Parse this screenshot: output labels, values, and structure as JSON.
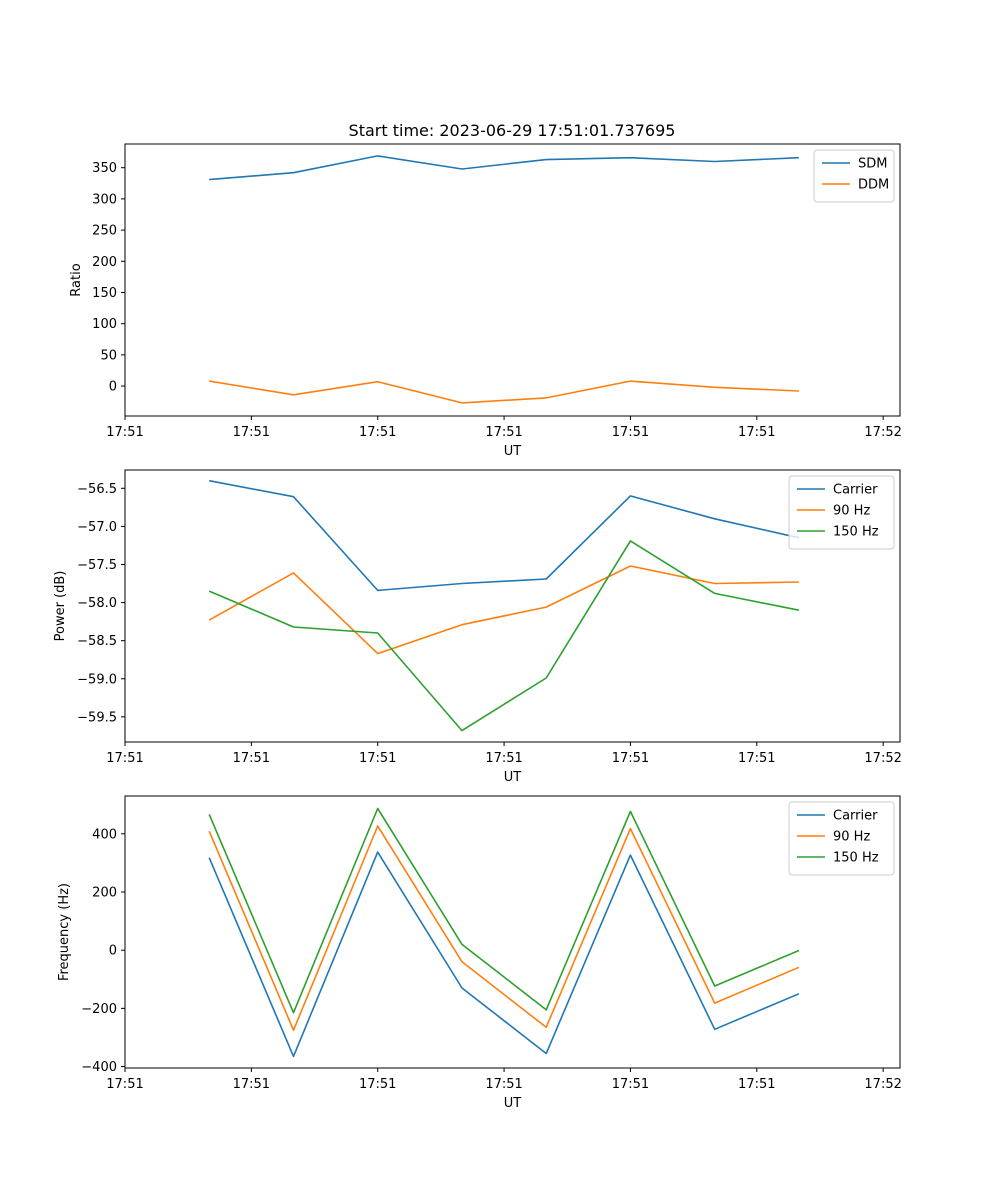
{
  "figure_title": "Start time: 2023-06-29 17:51:01.737695",
  "colors": {
    "blue": "#1f77b4",
    "orange": "#ff7f0e",
    "green": "#2ca02c"
  },
  "chart_data": [
    {
      "type": "line",
      "title": "Start time: 2023-06-29 17:51:01.737695",
      "xlabel": "UT",
      "ylabel": "Ratio",
      "x": [
        0.5,
        1.0,
        1.5,
        2.0,
        2.5,
        3.0,
        3.5,
        4.0
      ],
      "xlim": [
        0.0,
        4.6
      ],
      "xticks": [
        0.0,
        0.75,
        1.5,
        2.25,
        3.0,
        3.75,
        4.5
      ],
      "xtick_labels": [
        "17:51",
        "17:51",
        "17:51",
        "17:51",
        "17:51",
        "17:51",
        "17:52"
      ],
      "ylim": [
        -48,
        388
      ],
      "yticks": [
        0,
        50,
        100,
        150,
        200,
        250,
        300,
        350
      ],
      "ytick_labels": [
        "0",
        "50",
        "100",
        "150",
        "200",
        "250",
        "300",
        "350"
      ],
      "legend": "top-right",
      "grid": false,
      "series": [
        {
          "name": "SDM",
          "color": "#1f77b4",
          "values": [
            331,
            342,
            369,
            348,
            363,
            366,
            360,
            366
          ]
        },
        {
          "name": "DDM",
          "color": "#ff7f0e",
          "values": [
            8,
            -14,
            7,
            -27,
            -19,
            8,
            -2,
            -8
          ]
        }
      ]
    },
    {
      "type": "line",
      "xlabel": "UT",
      "ylabel": "Power (dB)",
      "x": [
        0.5,
        1.0,
        1.5,
        2.0,
        2.5,
        3.0,
        3.5,
        4.0
      ],
      "xlim": [
        0.0,
        4.6
      ],
      "xticks": [
        0.0,
        0.75,
        1.5,
        2.25,
        3.0,
        3.75,
        4.5
      ],
      "xtick_labels": [
        "17:51",
        "17:51",
        "17:51",
        "17:51",
        "17:51",
        "17:51",
        "17:52"
      ],
      "ylim": [
        -59.83,
        -56.26
      ],
      "yticks": [
        -59.5,
        -59.0,
        -58.5,
        -58.0,
        -57.5,
        -57.0,
        -56.5
      ],
      "ytick_labels": [
        "−59.5",
        "−59.0",
        "−58.5",
        "−58.0",
        "−57.5",
        "−57.0",
        "−56.5"
      ],
      "legend": "top-right",
      "grid": false,
      "series": [
        {
          "name": "Carrier",
          "color": "#1f77b4",
          "values": [
            -56.4,
            -56.61,
            -57.84,
            -57.75,
            -57.69,
            -56.6,
            -56.9,
            -57.15
          ]
        },
        {
          "name": "90 Hz",
          "color": "#ff7f0e",
          "values": [
            -58.23,
            -57.61,
            -58.67,
            -58.29,
            -58.06,
            -57.52,
            -57.75,
            -57.73
          ]
        },
        {
          "name": "150 Hz",
          "color": "#2ca02c",
          "values": [
            -57.85,
            -58.32,
            -58.4,
            -59.68,
            -58.99,
            -57.19,
            -57.88,
            -58.1
          ]
        }
      ]
    },
    {
      "type": "line",
      "xlabel": "UT",
      "ylabel": "Frequency (Hz)",
      "x": [
        0.5,
        1.0,
        1.5,
        2.0,
        2.5,
        3.0,
        3.5,
        4.0
      ],
      "xlim": [
        0.0,
        4.6
      ],
      "xticks": [
        0.0,
        0.75,
        1.5,
        2.25,
        3.0,
        3.75,
        4.5
      ],
      "xtick_labels": [
        "17:51",
        "17:51",
        "17:51",
        "17:51",
        "17:51",
        "17:51",
        "17:52"
      ],
      "ylim": [
        -405,
        530
      ],
      "yticks": [
        -400,
        -200,
        0,
        200,
        400
      ],
      "ytick_labels": [
        "−400",
        "−200",
        "0",
        "200",
        "400"
      ],
      "legend": "top-right",
      "grid": false,
      "series": [
        {
          "name": "Carrier",
          "color": "#1f77b4",
          "values": [
            318,
            -365,
            337,
            -130,
            -355,
            327,
            -272,
            -150
          ]
        },
        {
          "name": "90 Hz",
          "color": "#ff7f0e",
          "values": [
            409,
            -275,
            427,
            -40,
            -265,
            418,
            -182,
            -59
          ]
        },
        {
          "name": "150 Hz",
          "color": "#2ca02c",
          "values": [
            467,
            -215,
            487,
            20,
            -205,
            477,
            -123,
            -1
          ]
        }
      ]
    }
  ]
}
